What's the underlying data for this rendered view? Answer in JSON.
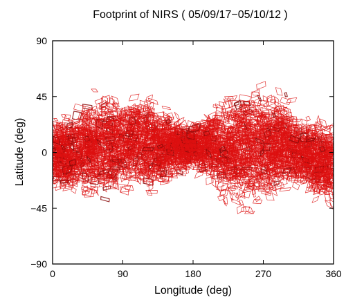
{
  "chart_data": {
    "type": "scatter",
    "title": "Footprint of NIRS ( 05/09/17−05/10/12 )",
    "xlabel": "Longitude (deg)",
    "ylabel": "Latitude (deg)",
    "xlim": [
      0,
      360
    ],
    "ylim": [
      -90,
      90
    ],
    "xticks": [
      0,
      90,
      180,
      270,
      360
    ],
    "xtick_labels": [
      "0",
      "90",
      "180",
      "270",
      "360"
    ],
    "yticks": [
      90,
      45,
      0,
      -45,
      -90
    ],
    "ytick_labels": [
      "90",
      "45",
      "0",
      "−45",
      "−90"
    ],
    "grid": false,
    "legend": "none",
    "mark": "outlined quadrilateral footprints",
    "color": "#dd1111",
    "coverage_envelope": [
      {
        "lon": 0,
        "lat_min": -30,
        "lat_max": 30
      },
      {
        "lon": 20,
        "lat_min": -42,
        "lat_max": 35
      },
      {
        "lon": 45,
        "lat_min": -45,
        "lat_max": 50
      },
      {
        "lon": 70,
        "lat_min": -42,
        "lat_max": 55
      },
      {
        "lon": 90,
        "lat_min": -40,
        "lat_max": 50
      },
      {
        "lon": 110,
        "lat_min": -35,
        "lat_max": 55
      },
      {
        "lon": 135,
        "lat_min": -35,
        "lat_max": 45
      },
      {
        "lon": 160,
        "lat_min": -25,
        "lat_max": 35
      },
      {
        "lon": 180,
        "lat_min": -15,
        "lat_max": 25
      },
      {
        "lon": 200,
        "lat_min": -30,
        "lat_max": 40
      },
      {
        "lon": 225,
        "lat_min": -50,
        "lat_max": 55
      },
      {
        "lon": 250,
        "lat_min": -52,
        "lat_max": 58
      },
      {
        "lon": 275,
        "lat_min": -48,
        "lat_max": 62
      },
      {
        "lon": 300,
        "lat_min": -40,
        "lat_max": 50
      },
      {
        "lon": 320,
        "lat_min": -30,
        "lat_max": 30
      },
      {
        "lon": 340,
        "lat_min": -45,
        "lat_max": 35
      },
      {
        "lon": 360,
        "lat_min": -48,
        "lat_max": 30
      }
    ]
  }
}
